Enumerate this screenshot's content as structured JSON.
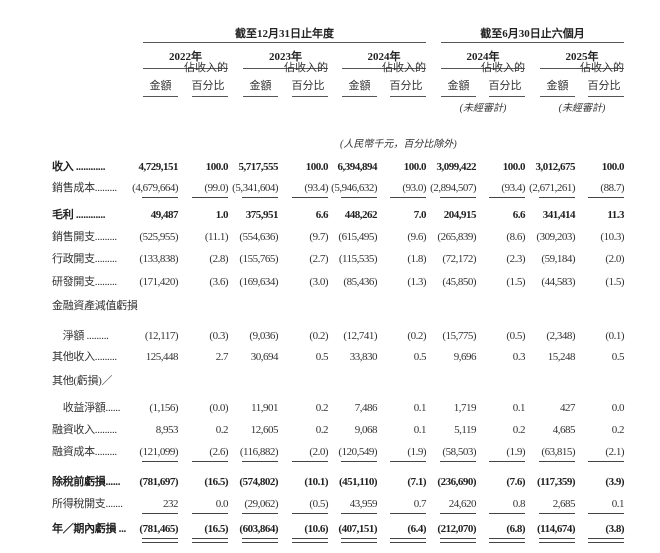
{
  "header": {
    "group_annual": "截至12月31日止年度",
    "group_six_months": "截至6月30日止六個月",
    "years": [
      "2022年",
      "2023年",
      "2024年",
      "2024年",
      "2025年"
    ],
    "amount_label": "金額",
    "pct_label_line1": "佔收入的",
    "pct_label_line2": "百分比",
    "unaudited": "(未經審計)",
    "unit_note": "(人民幣千元，百分比除外)"
  },
  "rows": [
    {
      "label": "收入 ............",
      "bold": true,
      "values": [
        "4,729,151",
        "100.0",
        "5,717,555",
        "100.0",
        "6,394,894",
        "100.0",
        "3,099,422",
        "100.0",
        "3,012,675",
        "100.0"
      ]
    },
    {
      "label": "銷售成本.........",
      "values": [
        "(4,679,664)",
        "(99.0)",
        "(5,341,604)",
        "(93.4)",
        "(5,946,632)",
        "(93.0)",
        "(2,894,507)",
        "(93.4)",
        "(2,671,261)",
        "(88.7)"
      ],
      "underline": "single"
    },
    {
      "label": "毛利 ............",
      "bold": true,
      "values": [
        "49,487",
        "1.0",
        "375,951",
        "6.6",
        "448,262",
        "7.0",
        "204,915",
        "6.6",
        "341,414",
        "11.3"
      ]
    },
    {
      "label": "銷售開支.........",
      "values": [
        "(525,955)",
        "(11.1)",
        "(554,636)",
        "(9.7)",
        "(615,495)",
        "(9.6)",
        "(265,839)",
        "(8.6)",
        "(309,203)",
        "(10.3)"
      ]
    },
    {
      "label": "行政開支.........",
      "values": [
        "(133,838)",
        "(2.8)",
        "(155,765)",
        "(2.7)",
        "(115,535)",
        "(1.8)",
        "(72,172)",
        "(2.3)",
        "(59,184)",
        "(2.0)"
      ]
    },
    {
      "label": "研發開支.........",
      "values": [
        "(171,420)",
        "(3.6)",
        "(169,634)",
        "(3.0)",
        "(85,436)",
        "(1.3)",
        "(45,850)",
        "(1.5)",
        "(44,583)",
        "(1.5)"
      ]
    },
    {
      "label": "金融資產減值虧損",
      "values": [
        "",
        "",
        "",
        "",
        "",
        "",
        "",
        "",
        "",
        ""
      ]
    },
    {
      "label": "　淨額 .........",
      "values": [
        "(12,117)",
        "(0.3)",
        "(9,036)",
        "(0.2)",
        "(12,741)",
        "(0.2)",
        "(15,775)",
        "(0.5)",
        "(2,348)",
        "(0.1)"
      ]
    },
    {
      "label": "其他收入.........",
      "values": [
        "125,448",
        "2.7",
        "30,694",
        "0.5",
        "33,830",
        "0.5",
        "9,696",
        "0.3",
        "15,248",
        "0.5"
      ]
    },
    {
      "label": "其他(虧損)／",
      "values": [
        "",
        "",
        "",
        "",
        "",
        "",
        "",
        "",
        "",
        ""
      ]
    },
    {
      "label": "　收益淨額......",
      "values": [
        "(1,156)",
        "(0.0)",
        "11,901",
        "0.2",
        "7,486",
        "0.1",
        "1,719",
        "0.1",
        "427",
        "0.0"
      ]
    },
    {
      "label": "融資收入.........",
      "values": [
        "8,953",
        "0.2",
        "12,605",
        "0.2",
        "9,068",
        "0.1",
        "5,119",
        "0.2",
        "4,685",
        "0.2"
      ]
    },
    {
      "label": "融資成本.........",
      "values": [
        "(121,099)",
        "(2.6)",
        "(116,882)",
        "(2.0)",
        "(120,549)",
        "(1.9)",
        "(58,503)",
        "(1.9)",
        "(63,815)",
        "(2.1)"
      ],
      "underline": "single"
    },
    {
      "label": "除稅前虧損......",
      "bold": true,
      "values": [
        "(781,697)",
        "(16.5)",
        "(574,802)",
        "(10.1)",
        "(451,110)",
        "(7.1)",
        "(236,690)",
        "(7.6)",
        "(117,359)",
        "(3.9)"
      ]
    },
    {
      "label": "所得稅開支.......",
      "values": [
        "232",
        "0.0",
        "(29,062)",
        "(0.5)",
        "43,959",
        "0.7",
        "24,620",
        "0.8",
        "2,685",
        "0.1"
      ],
      "underline": "single"
    },
    {
      "label": "年／期內虧損 ...",
      "bold": true,
      "values": [
        "(781,465)",
        "(16.5)",
        "(603,864)",
        "(10.6)",
        "(407,151)",
        "(6.4)",
        "(212,070)",
        "(6.8)",
        "(114,674)",
        "(3.8)"
      ],
      "underline": "double"
    }
  ]
}
